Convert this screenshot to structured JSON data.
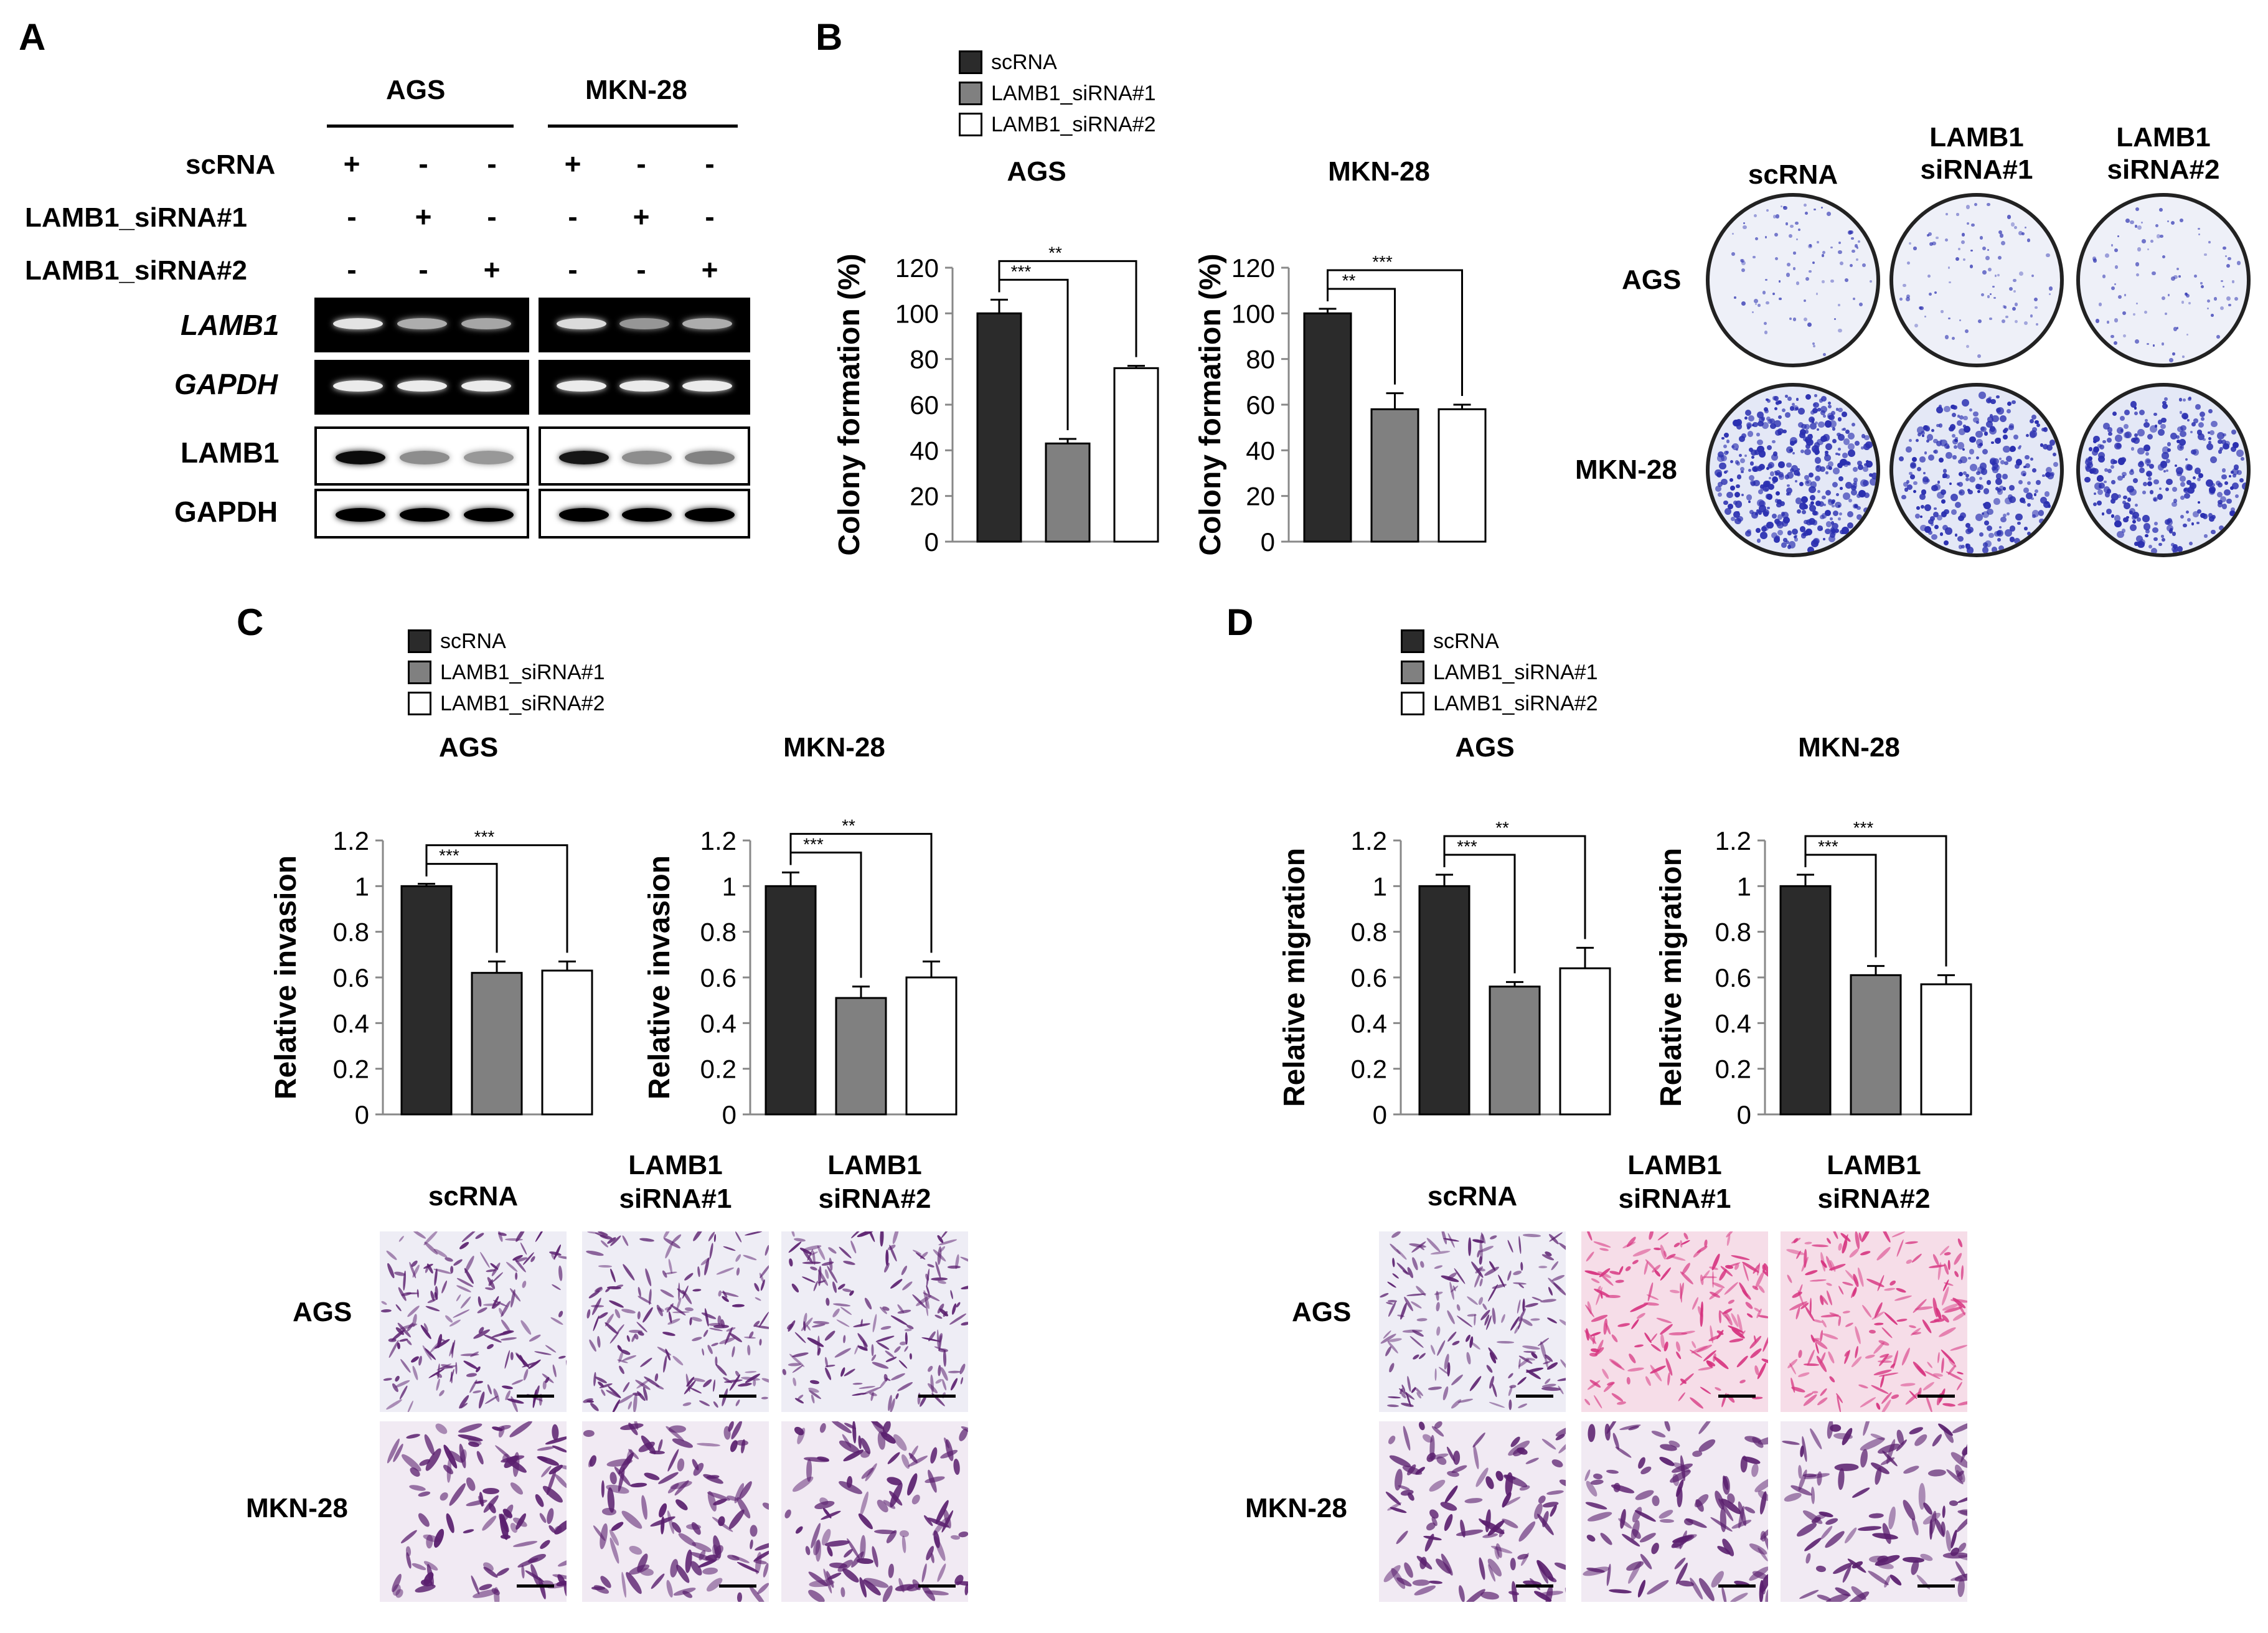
{
  "panels": {
    "a": "A",
    "b": "B",
    "c": "C",
    "d": "D"
  },
  "conditions": [
    "scRNA",
    "LAMB1_siRNA#1",
    "LAMB1_siRNA#2"
  ],
  "cell_lines": [
    "AGS",
    "MKN-28"
  ],
  "panelA": {
    "row_labels": [
      "scRNA",
      "LAMB1_siRNA#1",
      "LAMB1_siRNA#2"
    ],
    "signs": [
      [
        "+",
        "-",
        "-",
        "+",
        "-",
        "-"
      ],
      [
        "-",
        "+",
        "-",
        "-",
        "+",
        "-"
      ],
      [
        "-",
        "-",
        "+",
        "-",
        "-",
        "+"
      ]
    ],
    "gene_labels": [
      "LAMB1",
      "GAPDH"
    ],
    "protein_labels": [
      "LAMB1",
      "GAPDH"
    ],
    "rna_lamb1_intensity": [
      0.9,
      0.55,
      0.5,
      0.85,
      0.4,
      0.55
    ],
    "wb_lamb1_intensity": [
      0.95,
      0.35,
      0.3,
      0.9,
      0.35,
      0.4
    ]
  },
  "image_col_labels": [
    [
      "scRNA"
    ],
    [
      "LAMB1",
      "siRNA#1"
    ],
    [
      "LAMB1",
      "siRNA#2"
    ]
  ],
  "colors": {
    "scrna": "#2b2b2b",
    "si1": "#808080",
    "si2": "#ffffff",
    "dish_stain": "#2a2fb0",
    "invasion_stain": "#5a1f6e",
    "migration_pink": "#d6337f"
  },
  "chart_data": [
    {
      "type": "bar",
      "title": "AGS",
      "ylabel": "Colony formation (%)",
      "categories": [
        "scRNA",
        "LAMB1_siRNA#1",
        "LAMB1_siRNA#2"
      ],
      "values": [
        100,
        43,
        76
      ],
      "errors": [
        6,
        2,
        1
      ],
      "ylim": [
        0,
        120
      ],
      "yticks": [
        "0",
        "20",
        "40",
        "60",
        "80",
        "100",
        "120"
      ],
      "sig": [
        "***",
        "**"
      ]
    },
    {
      "type": "bar",
      "title": "MKN-28",
      "ylabel": "Colony formation (%)",
      "categories": [
        "scRNA",
        "LAMB1_siRNA#1",
        "LAMB1_siRNA#2"
      ],
      "values": [
        100,
        58,
        58
      ],
      "errors": [
        2,
        7,
        2
      ],
      "ylim": [
        0,
        120
      ],
      "yticks": [
        "0",
        "20",
        "40",
        "60",
        "80",
        "100",
        "120"
      ],
      "sig": [
        "**",
        "***"
      ]
    },
    {
      "type": "bar",
      "title": "AGS",
      "ylabel": "Relative invasion",
      "categories": [
        "scRNA",
        "LAMB1_siRNA#1",
        "LAMB1_siRNA#2"
      ],
      "values": [
        1.0,
        0.62,
        0.63
      ],
      "errors": [
        0.01,
        0.05,
        0.04
      ],
      "ylim": [
        0,
        1.2
      ],
      "yticks": [
        "0",
        "0.2",
        "0.4",
        "0.6",
        "0.8",
        "1",
        "1.2"
      ],
      "sig": [
        "***",
        "***"
      ]
    },
    {
      "type": "bar",
      "title": "MKN-28",
      "ylabel": "Relative invasion",
      "categories": [
        "scRNA",
        "LAMB1_siRNA#1",
        "LAMB1_siRNA#2"
      ],
      "values": [
        1.0,
        0.51,
        0.6
      ],
      "errors": [
        0.06,
        0.05,
        0.07
      ],
      "ylim": [
        0,
        1.2
      ],
      "yticks": [
        "0",
        "0.2",
        "0.4",
        "0.6",
        "0.8",
        "1",
        "1.2"
      ],
      "sig": [
        "***",
        "**"
      ]
    },
    {
      "type": "bar",
      "title": "AGS",
      "ylabel": "Relative migration",
      "categories": [
        "scRNA",
        "LAMB1_siRNA#1",
        "LAMB1_siRNA#2"
      ],
      "values": [
        1.0,
        0.56,
        0.64
      ],
      "errors": [
        0.05,
        0.02,
        0.09
      ],
      "ylim": [
        0,
        1.2
      ],
      "yticks": [
        "0",
        "0.2",
        "0.4",
        "0.6",
        "0.8",
        "1",
        "1.2"
      ],
      "sig": [
        "***",
        "**"
      ]
    },
    {
      "type": "bar",
      "title": "MKN-28",
      "ylabel": "Relative migration",
      "categories": [
        "scRNA",
        "LAMB1_siRNA#1",
        "LAMB1_siRNA#2"
      ],
      "values": [
        1.0,
        0.61,
        0.57
      ],
      "errors": [
        0.05,
        0.04,
        0.04
      ],
      "ylim": [
        0,
        1.2
      ],
      "yticks": [
        "0",
        "0.2",
        "0.4",
        "0.6",
        "0.8",
        "1",
        "1.2"
      ],
      "sig": [
        "***",
        "***"
      ]
    }
  ]
}
